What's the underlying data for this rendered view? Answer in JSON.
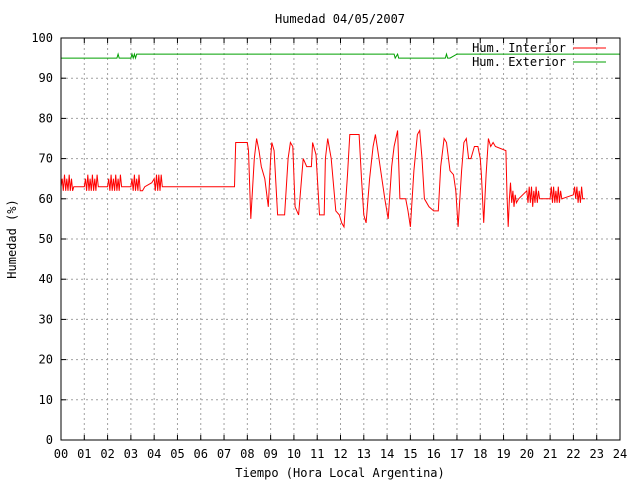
{
  "chart_data": {
    "type": "line",
    "title": "Humedad 04/05/2007",
    "xlabel": "Tiempo (Hora Local Argentina)",
    "ylabel": "Humedad (%)",
    "xlim": [
      0,
      24
    ],
    "ylim": [
      0,
      100
    ],
    "x_ticks": [
      "00",
      "01",
      "02",
      "03",
      "04",
      "05",
      "06",
      "07",
      "08",
      "09",
      "10",
      "11",
      "12",
      "13",
      "14",
      "15",
      "16",
      "17",
      "18",
      "19",
      "20",
      "21",
      "22",
      "23",
      "24"
    ],
    "y_ticks": [
      "0",
      "10",
      "20",
      "30",
      "40",
      "50",
      "60",
      "70",
      "80",
      "90",
      "100"
    ],
    "grid": true,
    "legend_position": "top-right",
    "series": [
      {
        "name": "Hum. Interior",
        "color": "#ff0000",
        "points": [
          [
            0.0,
            63
          ],
          [
            0.05,
            65
          ],
          [
            0.1,
            62
          ],
          [
            0.15,
            66
          ],
          [
            0.2,
            62
          ],
          [
            0.25,
            65
          ],
          [
            0.3,
            62
          ],
          [
            0.35,
            66
          ],
          [
            0.4,
            62
          ],
          [
            0.45,
            65
          ],
          [
            0.5,
            62
          ],
          [
            0.55,
            63
          ],
          [
            0.6,
            63
          ],
          [
            1.0,
            63
          ],
          [
            1.05,
            65
          ],
          [
            1.1,
            62
          ],
          [
            1.15,
            66
          ],
          [
            1.2,
            62
          ],
          [
            1.25,
            65
          ],
          [
            1.3,
            62
          ],
          [
            1.35,
            66
          ],
          [
            1.4,
            62
          ],
          [
            1.45,
            65
          ],
          [
            1.5,
            62
          ],
          [
            1.55,
            66
          ],
          [
            1.6,
            63
          ],
          [
            2.0,
            63
          ],
          [
            2.05,
            65
          ],
          [
            2.1,
            62
          ],
          [
            2.15,
            66
          ],
          [
            2.2,
            62
          ],
          [
            2.25,
            65
          ],
          [
            2.3,
            62
          ],
          [
            2.35,
            66
          ],
          [
            2.4,
            62
          ],
          [
            2.45,
            65
          ],
          [
            2.5,
            62
          ],
          [
            2.55,
            66
          ],
          [
            2.6,
            63
          ],
          [
            3.0,
            63
          ],
          [
            3.05,
            65
          ],
          [
            3.1,
            62
          ],
          [
            3.15,
            66
          ],
          [
            3.2,
            62
          ],
          [
            3.25,
            65
          ],
          [
            3.3,
            62
          ],
          [
            3.35,
            66
          ],
          [
            3.4,
            62
          ],
          [
            3.5,
            62
          ],
          [
            3.6,
            63
          ],
          [
            3.9,
            64
          ],
          [
            4.0,
            65
          ],
          [
            4.05,
            62
          ],
          [
            4.1,
            66
          ],
          [
            4.15,
            62
          ],
          [
            4.2,
            66
          ],
          [
            4.25,
            62
          ],
          [
            4.3,
            66
          ],
          [
            4.35,
            63
          ],
          [
            4.5,
            63
          ],
          [
            5.0,
            63
          ],
          [
            6.0,
            63
          ],
          [
            7.0,
            63
          ],
          [
            7.45,
            63
          ],
          [
            7.5,
            74
          ],
          [
            8.0,
            74
          ],
          [
            8.05,
            72
          ],
          [
            8.15,
            55
          ],
          [
            8.3,
            70
          ],
          [
            8.4,
            75
          ],
          [
            8.5,
            72
          ],
          [
            8.6,
            68
          ],
          [
            8.75,
            65
          ],
          [
            8.9,
            58
          ],
          [
            9.0,
            70
          ],
          [
            9.05,
            74
          ],
          [
            9.15,
            72
          ],
          [
            9.3,
            56
          ],
          [
            9.6,
            56
          ],
          [
            9.75,
            70
          ],
          [
            9.85,
            74
          ],
          [
            9.95,
            73
          ],
          [
            10.05,
            58
          ],
          [
            10.2,
            56
          ],
          [
            10.4,
            70
          ],
          [
            10.55,
            68
          ],
          [
            10.75,
            68
          ],
          [
            10.8,
            74
          ],
          [
            10.95,
            71
          ],
          [
            11.1,
            56
          ],
          [
            11.3,
            56
          ],
          [
            11.35,
            70
          ],
          [
            11.45,
            75
          ],
          [
            11.6,
            70
          ],
          [
            11.8,
            57
          ],
          [
            11.95,
            56
          ],
          [
            12.05,
            54
          ],
          [
            12.15,
            53
          ],
          [
            12.3,
            66
          ],
          [
            12.4,
            76
          ],
          [
            12.8,
            76
          ],
          [
            12.9,
            65
          ],
          [
            13.0,
            56
          ],
          [
            13.1,
            54
          ],
          [
            13.25,
            65
          ],
          [
            13.4,
            73
          ],
          [
            13.5,
            76
          ],
          [
            13.6,
            72
          ],
          [
            13.75,
            66
          ],
          [
            13.9,
            60
          ],
          [
            14.05,
            55
          ],
          [
            14.2,
            68
          ],
          [
            14.3,
            73
          ],
          [
            14.45,
            77
          ],
          [
            14.55,
            60
          ],
          [
            14.8,
            60
          ],
          [
            14.9,
            57
          ],
          [
            15.0,
            53
          ],
          [
            15.15,
            67
          ],
          [
            15.3,
            76
          ],
          [
            15.4,
            77
          ],
          [
            15.5,
            70
          ],
          [
            15.6,
            60
          ],
          [
            15.8,
            58
          ],
          [
            16.0,
            57
          ],
          [
            16.2,
            57
          ],
          [
            16.3,
            68
          ],
          [
            16.45,
            75
          ],
          [
            16.55,
            74
          ],
          [
            16.7,
            67
          ],
          [
            16.85,
            66
          ],
          [
            16.95,
            62
          ],
          [
            17.05,
            53
          ],
          [
            17.2,
            67
          ],
          [
            17.3,
            74
          ],
          [
            17.4,
            75
          ],
          [
            17.5,
            70
          ],
          [
            17.6,
            70
          ],
          [
            17.75,
            73
          ],
          [
            17.9,
            73
          ],
          [
            18.0,
            70
          ],
          [
            18.05,
            66
          ],
          [
            18.15,
            54
          ],
          [
            18.25,
            66
          ],
          [
            18.35,
            75
          ],
          [
            18.45,
            73
          ],
          [
            18.55,
            74
          ],
          [
            18.65,
            73
          ],
          [
            19.1,
            72
          ],
          [
            19.15,
            61
          ],
          [
            19.2,
            53
          ],
          [
            19.25,
            60
          ],
          [
            19.3,
            64
          ],
          [
            19.35,
            59
          ],
          [
            19.4,
            62
          ],
          [
            19.45,
            58
          ],
          [
            19.5,
            61
          ],
          [
            19.55,
            59
          ],
          [
            19.65,
            60
          ],
          [
            20.0,
            62
          ],
          [
            20.05,
            59
          ],
          [
            20.1,
            63
          ],
          [
            20.15,
            59
          ],
          [
            20.2,
            63
          ],
          [
            20.25,
            58
          ],
          [
            20.3,
            62
          ],
          [
            20.35,
            59
          ],
          [
            20.4,
            63
          ],
          [
            20.45,
            59
          ],
          [
            20.5,
            62
          ],
          [
            20.55,
            60
          ],
          [
            21.0,
            60
          ],
          [
            21.05,
            63
          ],
          [
            21.1,
            59
          ],
          [
            21.15,
            63
          ],
          [
            21.2,
            59
          ],
          [
            21.25,
            62
          ],
          [
            21.3,
            59
          ],
          [
            21.35,
            63
          ],
          [
            21.4,
            59
          ],
          [
            21.45,
            62
          ],
          [
            21.5,
            60
          ],
          [
            22.0,
            61
          ],
          [
            22.05,
            63
          ],
          [
            22.1,
            60
          ],
          [
            22.15,
            63
          ],
          [
            22.2,
            59
          ],
          [
            22.25,
            62
          ],
          [
            22.3,
            59
          ],
          [
            22.35,
            63
          ],
          [
            22.4,
            60
          ],
          [
            22.5,
            60
          ]
        ]
      },
      {
        "name": "Hum. Exterior",
        "color": "#00a000",
        "points": [
          [
            0.0,
            95
          ],
          [
            2.4,
            95
          ],
          [
            2.45,
            96
          ],
          [
            2.5,
            95
          ],
          [
            3.0,
            95
          ],
          [
            3.05,
            96
          ],
          [
            3.1,
            95
          ],
          [
            3.15,
            96
          ],
          [
            3.2,
            95
          ],
          [
            3.25,
            96
          ],
          [
            14.3,
            96
          ],
          [
            14.35,
            95
          ],
          [
            14.45,
            96
          ],
          [
            14.5,
            95
          ],
          [
            16.5,
            95
          ],
          [
            16.55,
            96
          ],
          [
            16.6,
            95
          ],
          [
            16.7,
            95
          ],
          [
            17.0,
            96
          ],
          [
            24.0,
            96
          ]
        ]
      }
    ]
  }
}
